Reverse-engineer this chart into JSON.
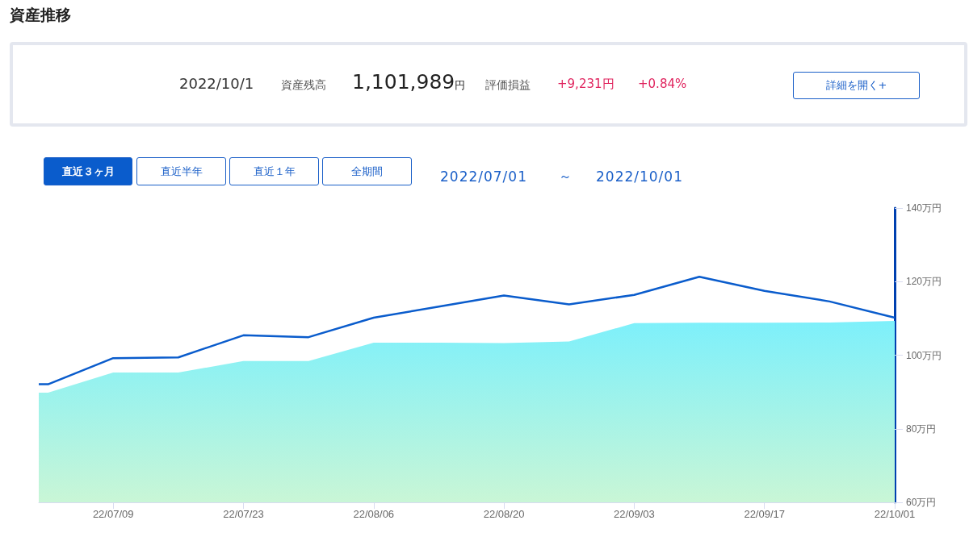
{
  "chart_data": {
    "type": "line",
    "title": "資産推移",
    "annotations": [
      "2022/10/1",
      "資産残高",
      "1,101,989円",
      "評価損益",
      "+9,231円",
      "+0.84%",
      "詳細を開く+",
      "直近３ヶ月",
      "直近半年",
      "直近１年",
      "全期間",
      "2022/07/01",
      "～",
      "2022/10/01"
    ],
    "x": [
      "2022-07-01",
      "2022-07-02",
      "2022-07-09",
      "2022-07-16",
      "2022-07-23",
      "2022-07-30",
      "2022-08-06",
      "2022-08-13",
      "2022-08-20",
      "2022-08-27",
      "2022-09-03",
      "2022-09-10",
      "2022-09-17",
      "2022-09-24",
      "2022-10-01"
    ],
    "series": [
      {
        "type": "area",
        "color": "#7df0fb",
        "values": [
          89.8,
          89.8,
          95.3,
          95.3,
          98.4,
          98.4,
          103.4,
          103.4,
          103.3,
          103.7,
          108.7,
          108.8,
          108.8,
          108.9,
          109.3
        ]
      },
      {
        "type": "line",
        "color": "#0a5ccc",
        "values": [
          92.1,
          92.1,
          99.2,
          99.4,
          105.4,
          104.9,
          110.2,
          113.2,
          116.2,
          113.8,
          116.4,
          121.3,
          117.5,
          114.6,
          110.2
        ]
      }
    ],
    "xlim": [
      "2022-07-01",
      "2022-10-01"
    ],
    "xticks": [
      {
        "value": "2022-07-09",
        "label": "22/07/09"
      },
      {
        "value": "2022-07-23",
        "label": "22/07/23"
      },
      {
        "value": "2022-08-06",
        "label": "22/08/06"
      },
      {
        "value": "2022-08-20",
        "label": "22/08/20"
      },
      {
        "value": "2022-09-03",
        "label": "22/09/03"
      },
      {
        "value": "2022-09-17",
        "label": "22/09/17"
      },
      {
        "value": "2022-10-01",
        "label": "22/10/01"
      }
    ],
    "ylim": [
      60,
      140
    ],
    "yticks": [
      {
        "value": 60,
        "label": "60万円"
      },
      {
        "value": 80,
        "label": "80万円"
      },
      {
        "value": 100,
        "label": "100万円"
      },
      {
        "value": 120,
        "label": "120万円"
      },
      {
        "value": 140,
        "label": "140万円"
      }
    ],
    "grid": false,
    "marker": "none",
    "line_style": "solid"
  }
}
